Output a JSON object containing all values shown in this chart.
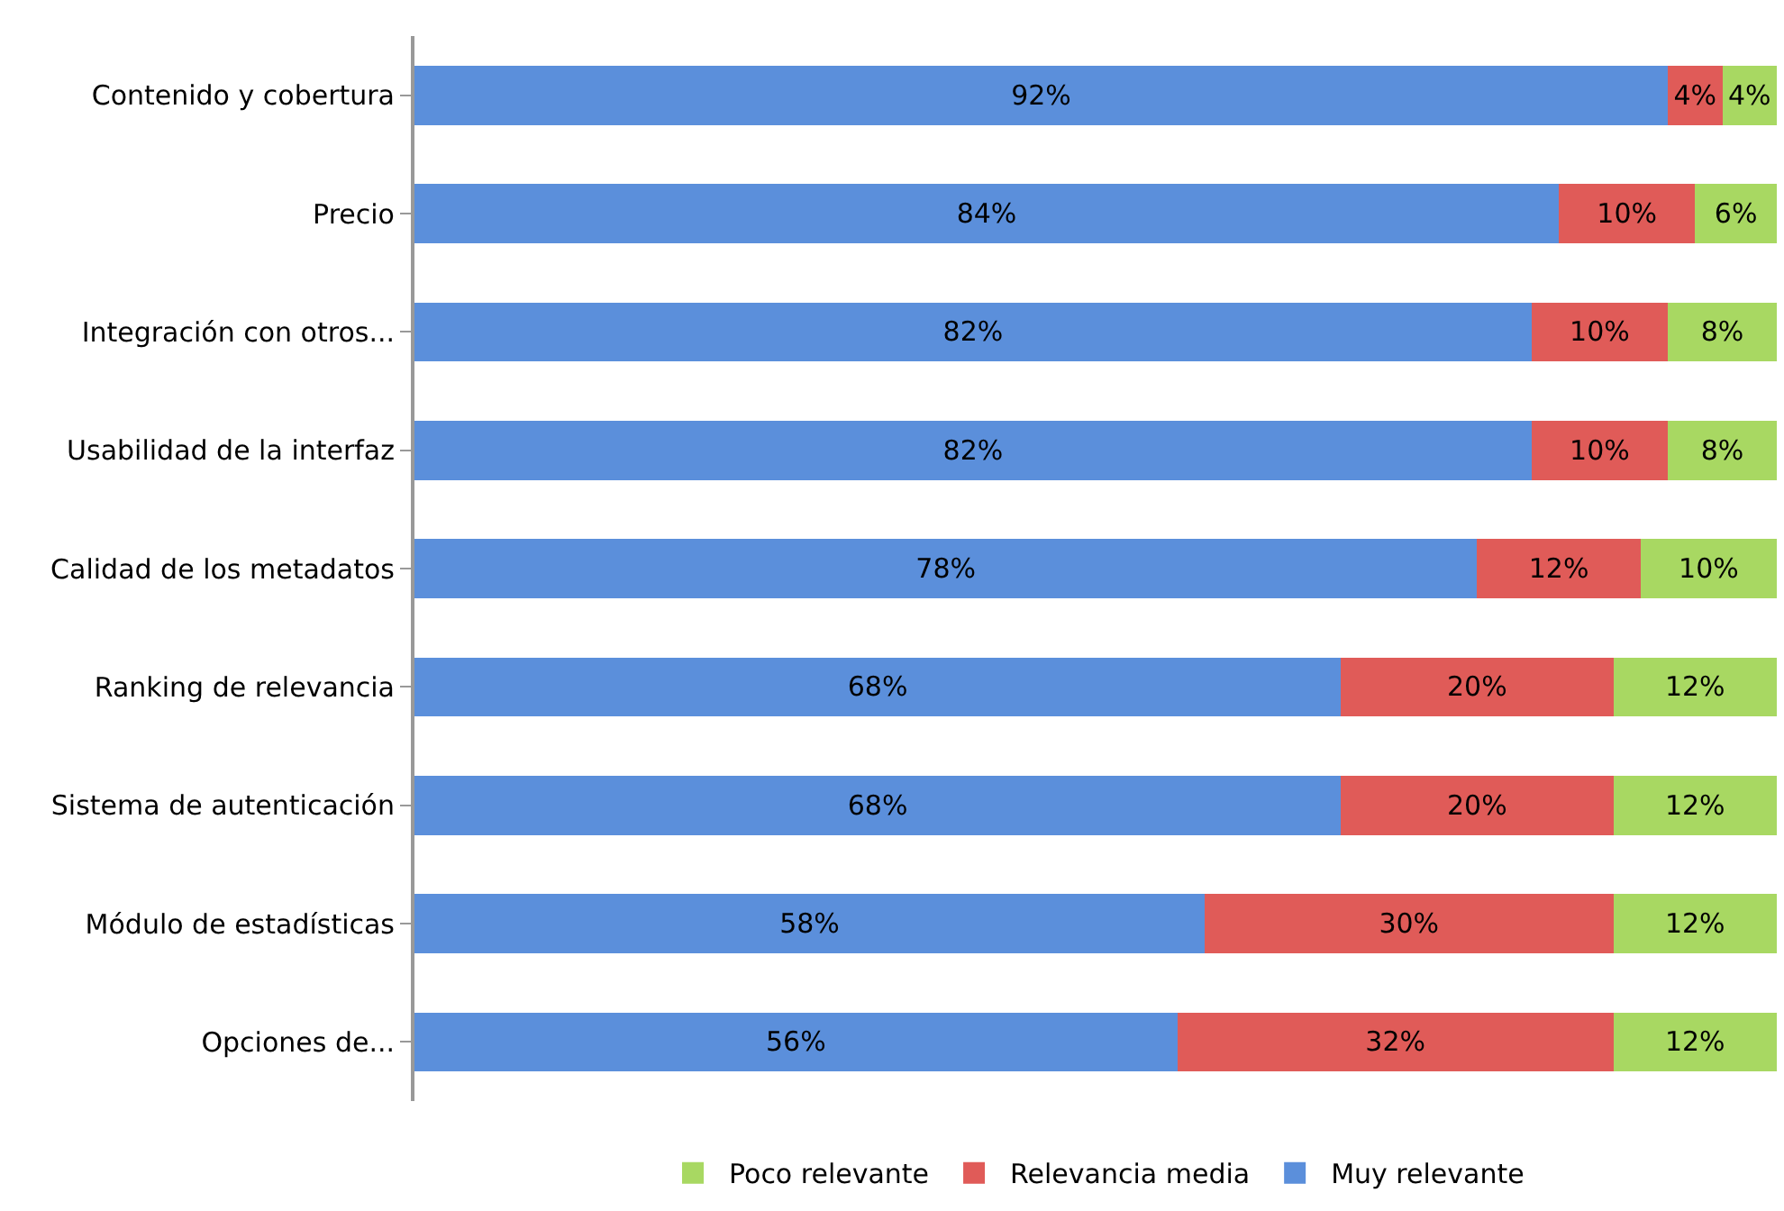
{
  "chart_data": {
    "type": "bar",
    "orientation": "horizontal",
    "stacked": true,
    "categories": [
      "Contenido y cobertura",
      "Precio",
      "Integración con otros...",
      "Usabilidad de la interfaz",
      "Calidad de los metadatos",
      "Ranking de relevancia",
      "Sistema de autenticación",
      "Módulo de estadísticas",
      "Opciones de..."
    ],
    "series": [
      {
        "name": "Muy relevante",
        "color": "#5b8fdb",
        "values": [
          92,
          84,
          82,
          82,
          78,
          68,
          68,
          58,
          56
        ],
        "value_labels": [
          "92%",
          "84%",
          "82%",
          "82%",
          "78%",
          "68%",
          "68%",
          "58%",
          "56%"
        ]
      },
      {
        "name": "Relevancia media",
        "color": "#e05b58",
        "values": [
          4,
          10,
          10,
          10,
          12,
          20,
          20,
          30,
          32
        ],
        "value_labels": [
          "4%",
          "10%",
          "10%",
          "10%",
          "12%",
          "20%",
          "20%",
          "30%",
          "32%"
        ]
      },
      {
        "name": "Poco relevante",
        "color": "#a8d862",
        "values": [
          4,
          6,
          8,
          8,
          10,
          12,
          12,
          12,
          12
        ],
        "value_labels": [
          "4%",
          "6%",
          "8%",
          "8%",
          "10%",
          "12%",
          "12%",
          "12%",
          "12%"
        ]
      }
    ],
    "xlim": [
      0,
      100
    ],
    "tick_labels": "y",
    "grid": false,
    "legend": "bottom"
  }
}
